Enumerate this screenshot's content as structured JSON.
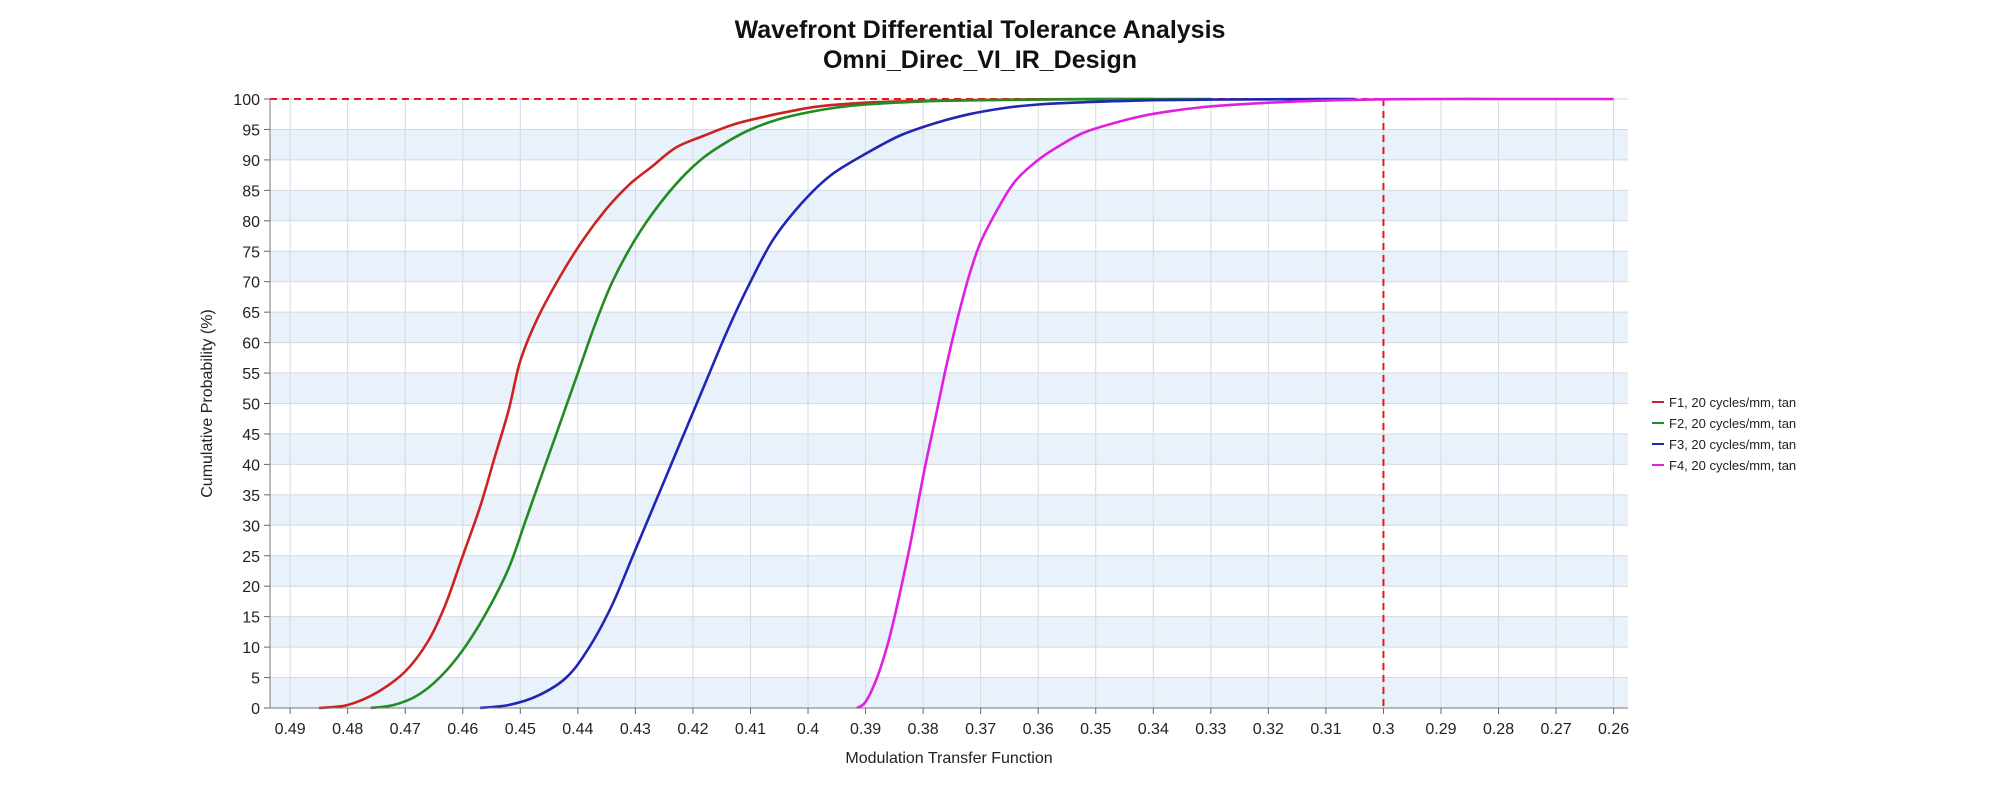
{
  "chart_data": {
    "type": "line",
    "title": "Wavefront Differential Tolerance Analysis",
    "subtitle": "Omni_Direc_VI_IR_Design",
    "xlabel": "Modulation Transfer Function",
    "ylabel": "Cumulative Probability (%)",
    "x_reversed": true,
    "xlim": [
      0.4935,
      0.2575
    ],
    "ylim": [
      0,
      100
    ],
    "xticks": [
      0.49,
      0.48,
      0.47,
      0.46,
      0.45,
      0.44,
      0.43,
      0.42,
      0.41,
      0.4,
      0.39,
      0.38,
      0.37,
      0.36,
      0.35,
      0.34,
      0.33,
      0.32,
      0.31,
      0.3,
      0.29,
      0.28,
      0.27,
      0.26
    ],
    "xtick_labels": [
      "0.49",
      "0.48",
      "0.47",
      "0.46",
      "0.45",
      "0.44",
      "0.43",
      "0.42",
      "0.41",
      "0.4",
      "0.39",
      "0.38",
      "0.37",
      "0.36",
      "0.35",
      "0.34",
      "0.33",
      "0.32",
      "0.31",
      "0.3",
      "0.29",
      "0.28",
      "0.27",
      "0.26"
    ],
    "yticks": [
      0,
      5,
      10,
      15,
      20,
      25,
      30,
      35,
      40,
      45,
      50,
      55,
      60,
      65,
      70,
      75,
      80,
      85,
      90,
      95,
      100
    ],
    "grid": true,
    "legend_position": "right",
    "reference_lines": [
      {
        "orientation": "horizontal",
        "y": 100,
        "color": "#e8171b",
        "style": "dashed"
      },
      {
        "orientation": "vertical",
        "x": 0.3,
        "color": "#e8171b",
        "style": "dashed"
      }
    ],
    "series": [
      {
        "name": "F1, 20 cycles/mm, tan",
        "color": "#cc2222",
        "x": [
          0.485,
          0.48,
          0.475,
          0.47,
          0.466,
          0.463,
          0.46,
          0.457,
          0.4545,
          0.452,
          0.45,
          0.447,
          0.443,
          0.439,
          0.435,
          0.431,
          0.427,
          0.423,
          0.418,
          0.413,
          0.408,
          0.403,
          0.398,
          0.39,
          0.38,
          0.37,
          0.36,
          0.35,
          0.34
        ],
        "y": [
          0,
          0.5,
          2.5,
          6,
          11,
          17,
          25,
          33,
          41,
          49,
          57,
          64,
          71,
          77,
          82,
          86,
          89,
          92,
          94,
          95.8,
          97,
          98,
          98.8,
          99.4,
          99.7,
          99.85,
          99.95,
          99.98,
          100
        ]
      },
      {
        "name": "F2, 20 cycles/mm, tan",
        "color": "#228b22",
        "x": [
          0.476,
          0.472,
          0.468,
          0.464,
          0.46,
          0.456,
          0.452,
          0.449,
          0.446,
          0.443,
          0.44,
          0.437,
          0.434,
          0.43,
          0.426,
          0.422,
          0.418,
          0.414,
          0.41,
          0.405,
          0.4,
          0.395,
          0.39,
          0.38,
          0.37,
          0.36,
          0.35,
          0.34,
          0.33
        ],
        "y": [
          0,
          0.5,
          2,
          5,
          9.5,
          15.5,
          23,
          31,
          39,
          47,
          55,
          63,
          70,
          77,
          82.5,
          87,
          90.5,
          93,
          95,
          96.7,
          97.8,
          98.6,
          99.1,
          99.6,
          99.8,
          99.9,
          99.96,
          99.99,
          100
        ]
      },
      {
        "name": "F3, 20 cycles/mm, tan",
        "color": "#1f25b5",
        "x": [
          0.457,
          0.452,
          0.447,
          0.442,
          0.438,
          0.434,
          0.43,
          0.426,
          0.422,
          0.418,
          0.414,
          0.41,
          0.406,
          0.401,
          0.396,
          0.39,
          0.384,
          0.378,
          0.372,
          0.366,
          0.36,
          0.354,
          0.348,
          0.34,
          0.33,
          0.32,
          0.31,
          0.305
        ],
        "y": [
          0,
          0.5,
          2,
          5,
          10,
          17,
          26,
          35,
          44,
          53,
          62,
          70,
          77,
          83,
          87.5,
          91,
          94,
          96,
          97.5,
          98.5,
          99.1,
          99.4,
          99.6,
          99.8,
          99.9,
          99.95,
          99.99,
          100
        ]
      },
      {
        "name": "F4, 20 cycles/mm, tan",
        "color": "#e020e0",
        "x": [
          0.3915,
          0.39,
          0.388,
          0.386,
          0.384,
          0.382,
          0.38,
          0.378,
          0.376,
          0.374,
          0.372,
          0.37,
          0.367,
          0.364,
          0.36,
          0.356,
          0.352,
          0.347,
          0.342,
          0.337,
          0.332,
          0.327,
          0.322,
          0.315,
          0.308,
          0.3,
          0.29,
          0.28,
          0.27,
          0.26
        ],
        "y": [
          0,
          1,
          5,
          11,
          19,
          28,
          38,
          47,
          56,
          64,
          71,
          76.5,
          82,
          86.5,
          90,
          92.5,
          94.5,
          96,
          97.2,
          98,
          98.6,
          99,
          99.3,
          99.6,
          99.8,
          99.95,
          100,
          100,
          100,
          100
        ]
      }
    ]
  }
}
